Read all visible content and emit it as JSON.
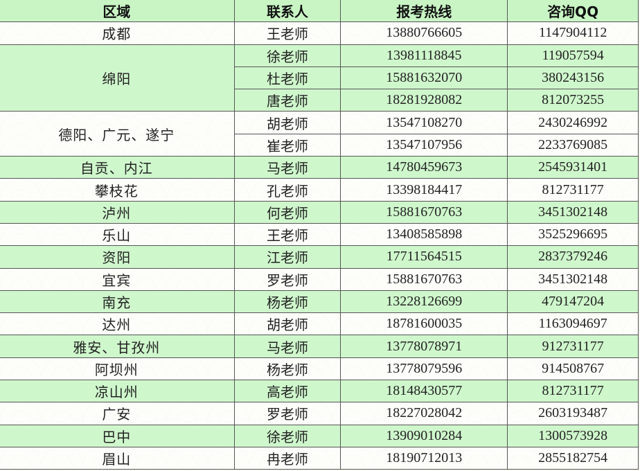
{
  "headers": [
    "区域",
    "联系人",
    "报考热线",
    "咨询QQ"
  ],
  "colors": {
    "green_row": "#cff7cc",
    "header_bg": "#c9f5c5",
    "border": "#555555"
  },
  "groups": [
    {
      "region": "成都",
      "shade": "white",
      "contacts": [
        {
          "name": "王老师",
          "phone": "13880766605",
          "qq": "1147904112"
        }
      ]
    },
    {
      "region": "绵阳",
      "shade": "green",
      "contacts": [
        {
          "name": "徐老师",
          "phone": "13981118845",
          "qq": "119057594"
        },
        {
          "name": "杜老师",
          "phone": "15881632070",
          "qq": "380243156"
        },
        {
          "name": "唐老师",
          "phone": "18281928082",
          "qq": "812073255"
        }
      ]
    },
    {
      "region": "德阳、广元、遂宁",
      "shade": "white",
      "contacts": [
        {
          "name": "胡老师",
          "phone": "13547108270",
          "qq": "2430246992"
        },
        {
          "name": "崔老师",
          "phone": "13547107956",
          "qq": "2233769085"
        }
      ]
    },
    {
      "region": "自贡、内江",
      "shade": "green",
      "contacts": [
        {
          "name": "马老师",
          "phone": "14780459673",
          "qq": "2545931401"
        }
      ]
    },
    {
      "region": "攀枝花",
      "shade": "white",
      "contacts": [
        {
          "name": "孔老师",
          "phone": "13398184417",
          "qq": "812731177"
        }
      ]
    },
    {
      "region": "泸州",
      "shade": "green",
      "contacts": [
        {
          "name": "何老师",
          "phone": "15881670763",
          "qq": "3451302148"
        }
      ]
    },
    {
      "region": "乐山",
      "shade": "white",
      "contacts": [
        {
          "name": "王老师",
          "phone": "13408585898",
          "qq": "3525296695"
        }
      ]
    },
    {
      "region": "资阳",
      "shade": "green",
      "contacts": [
        {
          "name": "江老师",
          "phone": "17711564515",
          "qq": "2837379246"
        }
      ]
    },
    {
      "region": "宜宾",
      "shade": "white",
      "contacts": [
        {
          "name": "罗老师",
          "phone": "15881670763",
          "qq": "3451302148"
        }
      ]
    },
    {
      "region": "南充",
      "shade": "green",
      "contacts": [
        {
          "name": "杨老师",
          "phone": "13228126699",
          "qq": "479147204"
        }
      ]
    },
    {
      "region": "达州",
      "shade": "white",
      "contacts": [
        {
          "name": "胡老师",
          "phone": "18781600035",
          "qq": "1163094697"
        }
      ]
    },
    {
      "region": "雅安、甘孜州",
      "shade": "green",
      "contacts": [
        {
          "name": "马老师",
          "phone": "13778078971",
          "qq": "912731177"
        }
      ]
    },
    {
      "region": "阿坝州",
      "shade": "white",
      "contacts": [
        {
          "name": "杨老师",
          "phone": "13778079596",
          "qq": "914508767"
        }
      ]
    },
    {
      "region": "凉山州",
      "shade": "green",
      "contacts": [
        {
          "name": "高老师",
          "phone": "18148430577",
          "qq": "812731177"
        }
      ]
    },
    {
      "region": "广安",
      "shade": "white",
      "contacts": [
        {
          "name": "罗老师",
          "phone": "18227028042",
          "qq": "2603193487"
        }
      ]
    },
    {
      "region": "巴中",
      "shade": "green",
      "contacts": [
        {
          "name": "徐老师",
          "phone": "13909010284",
          "qq": "1300573928"
        }
      ]
    },
    {
      "region": "眉山",
      "shade": "white",
      "contacts": [
        {
          "name": "冉老师",
          "phone": "18190712013",
          "qq": "2855182754"
        }
      ]
    }
  ]
}
